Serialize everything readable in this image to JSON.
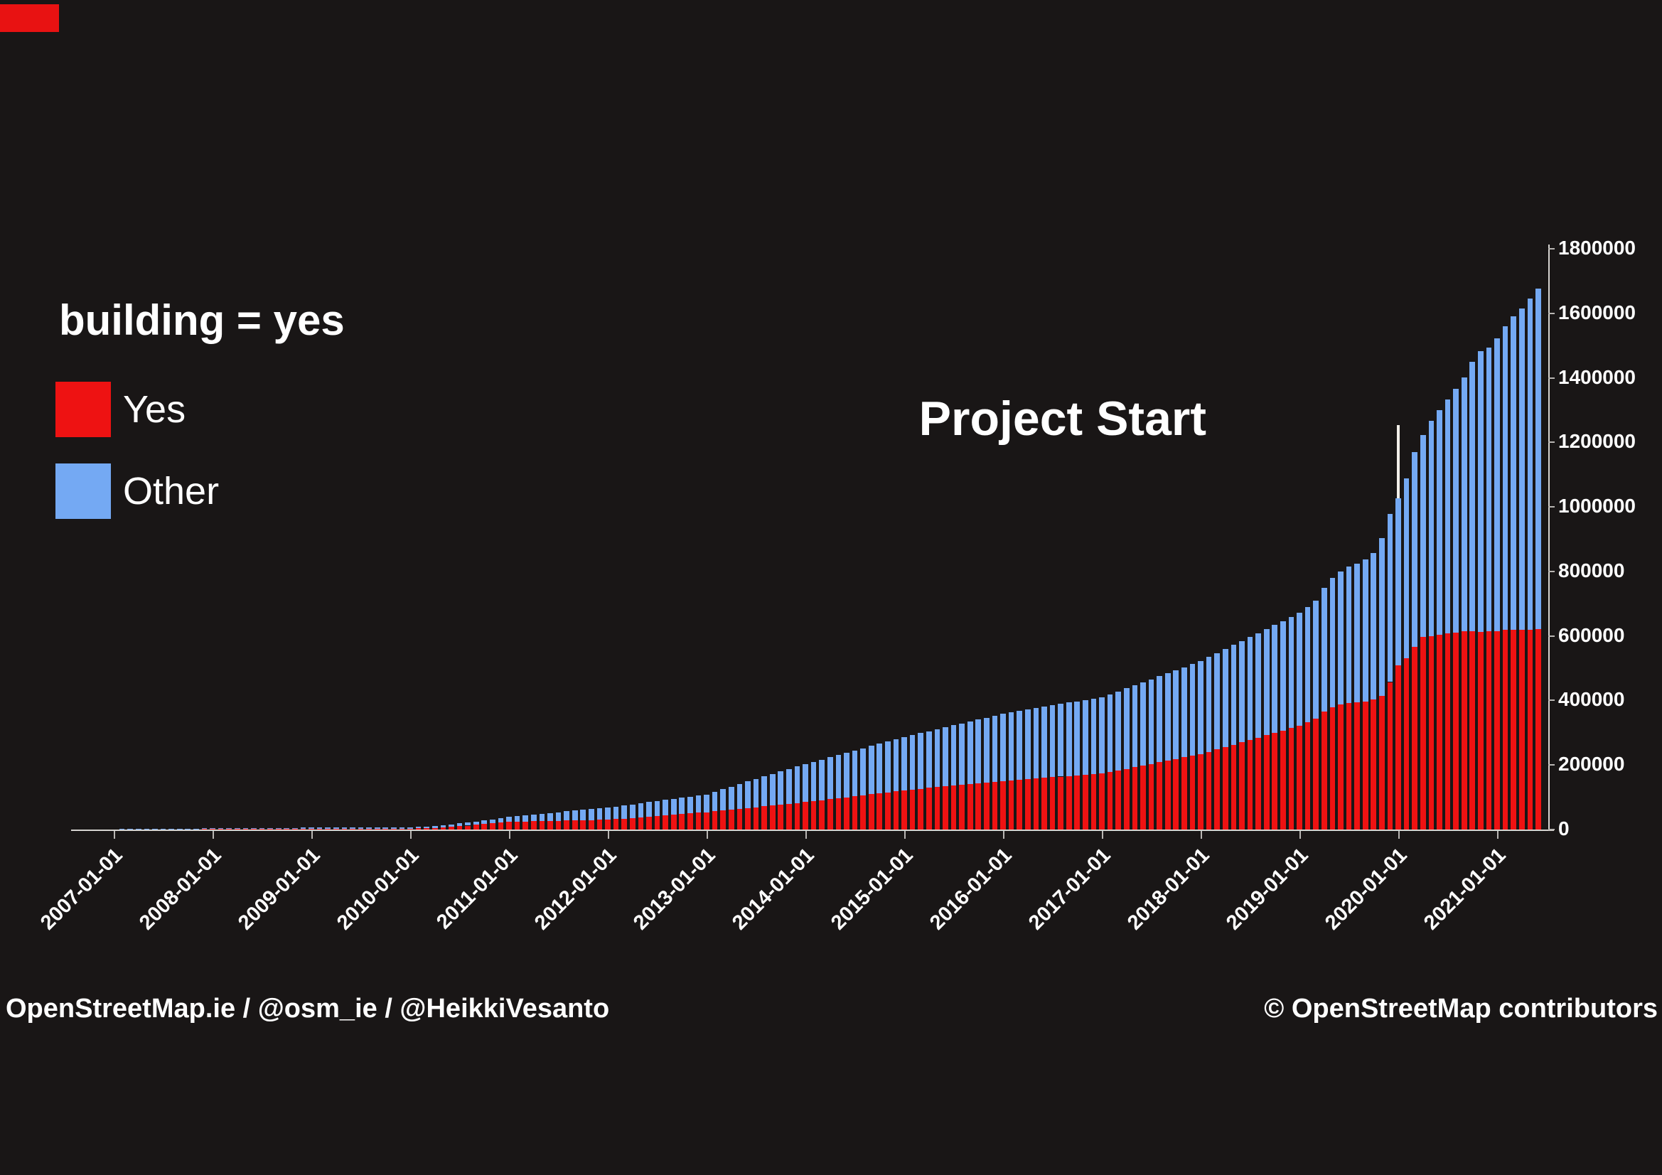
{
  "page": {
    "background": "#191616"
  },
  "corner_marker": {
    "color": "#e81212"
  },
  "title": "building = yes",
  "legend": {
    "items": [
      {
        "label": "Yes",
        "color": "#ee1212"
      },
      {
        "label": "Other",
        "color": "#74a9f3"
      }
    ]
  },
  "annotation": {
    "label": "Project Start",
    "x": "2020-01-01",
    "line_color": "#f2efe9"
  },
  "footer": {
    "left": "OpenStreetMap.ie  /  @osm_ie  /  @HeikkiVesanto",
    "right": "© OpenStreetMap contributors"
  },
  "chart_data": {
    "type": "bar",
    "stacked": true,
    "grid": false,
    "legend_position": "upper-left",
    "title": "building = yes",
    "xlabel": "",
    "ylabel": "",
    "ylim": [
      0,
      1800000
    ],
    "y_tick_labels": [
      "0",
      "200000",
      "400000",
      "600000",
      "800000",
      "1000000",
      "1200000",
      "1400000",
      "1600000",
      "1800000"
    ],
    "x_tick_labels": [
      "2007-01-01",
      "2008-01-01",
      "2009-01-01",
      "2010-01-01",
      "2011-01-01",
      "2012-01-01",
      "2013-01-01",
      "2014-01-01",
      "2015-01-01",
      "2016-01-01",
      "2017-01-01",
      "2018-01-01",
      "2019-01-01",
      "2020-01-01",
      "2021-01-01"
    ],
    "start_month": "2006-09",
    "frequency": "monthly",
    "series": [
      {
        "name": "Yes",
        "color": "#ee1212",
        "values": [
          100,
          150,
          200,
          300,
          400,
          450,
          500,
          550,
          600,
          650,
          700,
          750,
          800,
          900,
          1000,
          1100,
          1300,
          1350,
          1400,
          1450,
          1500,
          1550,
          1600,
          1650,
          1700,
          1750,
          1850,
          1900,
          2000,
          2050,
          2100,
          2150,
          2200,
          2250,
          2300,
          2350,
          2400,
          2500,
          2600,
          2650,
          2750,
          3300,
          4100,
          5300,
          6600,
          8200,
          10000,
          12200,
          14500,
          17200,
          20000,
          22000,
          24000,
          24600,
          25200,
          25800,
          26400,
          27000,
          27500,
          28000,
          28500,
          29200,
          29800,
          30400,
          31000,
          32500,
          34000,
          36000,
          38000,
          40000,
          42000,
          44000,
          46000,
          48000,
          50000,
          52000,
          54000,
          56500,
          59000,
          61500,
          64000,
          66500,
          69000,
          71500,
          74000,
          76500,
          79500,
          82000,
          85000,
          88000,
          91000,
          94000,
          97000,
          100000,
          103000,
          106000,
          109000,
          112500,
          115500,
          119000,
          122000,
          124000,
          126500,
          129000,
          131000,
          133500,
          136000,
          138000,
          140500,
          143000,
          145000,
          147500,
          150000,
          152000,
          154000,
          156000,
          158000,
          160000,
          162000,
          164000,
          166000,
          168000,
          169500,
          171000,
          173000,
          178000,
          183000,
          188000,
          193000,
          198000,
          203500,
          208500,
          213500,
          219000,
          224000,
          229000,
          234000,
          241000,
          248500,
          256000,
          263000,
          270500,
          278000,
          285000,
          292500,
          300000,
          307000,
          314500,
          322000,
          332000,
          343000,
          365000,
          380000,
          387000,
          391000,
          394000,
          397000,
          402000,
          413000,
          457000,
          508000,
          530000,
          567000,
          596000,
          600000,
          604000,
          608000,
          611000,
          615000,
          615000,
          613000,
          615000,
          615000,
          619000,
          619000,
          620000,
          620000,
          622000
        ]
      },
      {
        "name": "Other",
        "color": "#74a9f3",
        "values": [
          200,
          350,
          500,
          600,
          800,
          950,
          1100,
          1250,
          1400,
          1550,
          1700,
          1850,
          2000,
          2100,
          2300,
          2500,
          2700,
          2800,
          2900,
          3000,
          3100,
          3200,
          3300,
          3400,
          3500,
          3650,
          3750,
          3900,
          4000,
          4050,
          4100,
          4150,
          4200,
          4250,
          4300,
          4350,
          4400,
          4500,
          4600,
          4650,
          4650,
          5200,
          5900,
          6700,
          7400,
          8300,
          9000,
          9800,
          10500,
          11300,
          12000,
          13500,
          15000,
          16900,
          18800,
          20700,
          22600,
          24500,
          26500,
          28500,
          30500,
          32300,
          34200,
          35600,
          37000,
          38500,
          40500,
          42000,
          43500,
          45000,
          46500,
          48000,
          49500,
          51000,
          52500,
          54000,
          55000,
          60500,
          66000,
          71500,
          77000,
          82500,
          88000,
          93000,
          98000,
          103500,
          108500,
          113500,
          118000,
          122000,
          126000,
          130000,
          134000,
          138000,
          142000,
          146000,
          150000,
          153500,
          157500,
          161000,
          165000,
          169000,
          172500,
          176000,
          180000,
          183500,
          187000,
          191000,
          194500,
          198000,
          202000,
          205500,
          209000,
          211000,
          213500,
          216000,
          218000,
          220500,
          223000,
          225000,
          227500,
          229500,
          232500,
          235000,
          237000,
          241000,
          245500,
          250000,
          254000,
          258500,
          262500,
          266500,
          271000,
          275000,
          279000,
          283500,
          288000,
          293500,
          298500,
          303500,
          309000,
          313500,
          318500,
          324000,
          329000,
          334000,
          339500,
          344500,
          349000,
          358000,
          367000,
          385000,
          401000,
          412000,
          425000,
          431000,
          441000,
          456000,
          491000,
          522000,
          518000,
          559000,
          602000,
          626000,
          666000,
          697000,
          724000,
          754000,
          786000,
          834000,
          869000,
          878000,
          907000,
          941000,
          971000,
          995000,
          1025000,
          1054000
        ]
      }
    ]
  }
}
